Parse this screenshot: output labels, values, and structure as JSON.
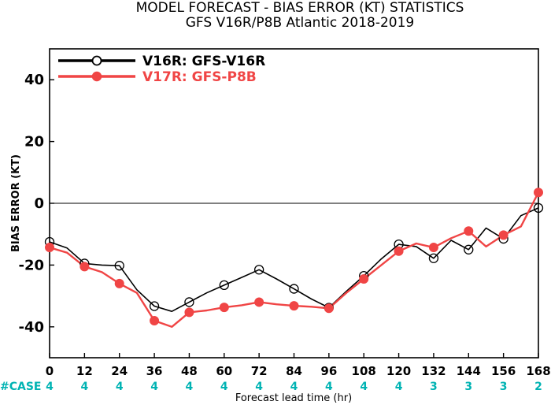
{
  "chart_data": {
    "type": "line",
    "title": "MODEL FORECAST - BIAS ERROR (KT) STATISTICS",
    "subtitle": "GFS V16R/P8B Atlantic 2018-2019",
    "xlabel": "Forecast lead time (hr)",
    "ylabel": "BIAS ERROR (KT)",
    "xlim": [
      0,
      168
    ],
    "ylim": [
      -50,
      50
    ],
    "xticks": [
      0,
      12,
      24,
      36,
      48,
      60,
      72,
      84,
      96,
      108,
      120,
      132,
      144,
      156,
      168
    ],
    "yticks": [
      -40,
      -20,
      0,
      20,
      40
    ],
    "case_label": "#CASE",
    "case_counts": [
      "4",
      "4",
      "4",
      "4",
      "4",
      "4",
      "4",
      "4",
      "4",
      "4",
      "4",
      "3",
      "3",
      "3",
      "2"
    ],
    "legend_position": "top-left",
    "series": [
      {
        "name": "V16R: GFS-V16R",
        "color": "#000000",
        "x": [
          0,
          6,
          12,
          18,
          24,
          30,
          36,
          42,
          48,
          54,
          60,
          66,
          72,
          78,
          84,
          90,
          96,
          102,
          108,
          114,
          120,
          126,
          132,
          138,
          144,
          150,
          156,
          162,
          168
        ],
        "y": [
          -12.5,
          -14.5,
          -19.5,
          -20,
          -20.2,
          -28,
          -33.3,
          -35,
          -32,
          -29,
          -26.5,
          -24,
          -21.5,
          -24.5,
          -27.7,
          -31,
          -33.8,
          -28.5,
          -23.5,
          -18,
          -13.3,
          -14,
          -17.8,
          -12,
          -15,
          -8,
          -11.5,
          -4,
          -1.5
        ],
        "markers_at": [
          0,
          12,
          24,
          36,
          48,
          60,
          72,
          84,
          96,
          108,
          120,
          132,
          144,
          156,
          168
        ]
      },
      {
        "name": "V17R: GFS-P8B",
        "color": "#f04545",
        "x": [
          0,
          6,
          12,
          18,
          24,
          30,
          36,
          42,
          48,
          54,
          60,
          66,
          72,
          78,
          84,
          90,
          96,
          102,
          108,
          114,
          120,
          126,
          132,
          138,
          144,
          150,
          156,
          162,
          168
        ],
        "y": [
          -14.3,
          -16,
          -20.5,
          -22.3,
          -26,
          -29,
          -38,
          -40,
          -35.3,
          -34.7,
          -33.7,
          -33,
          -32,
          -32.7,
          -33.2,
          -33.5,
          -34,
          -29,
          -24.5,
          -20,
          -15.5,
          -13,
          -14.3,
          -11.3,
          -9,
          -14,
          -10.3,
          -7.5,
          3.5
        ],
        "markers_at": [
          0,
          12,
          24,
          36,
          48,
          60,
          72,
          84,
          96,
          108,
          120,
          132,
          144,
          156,
          168
        ]
      }
    ]
  }
}
